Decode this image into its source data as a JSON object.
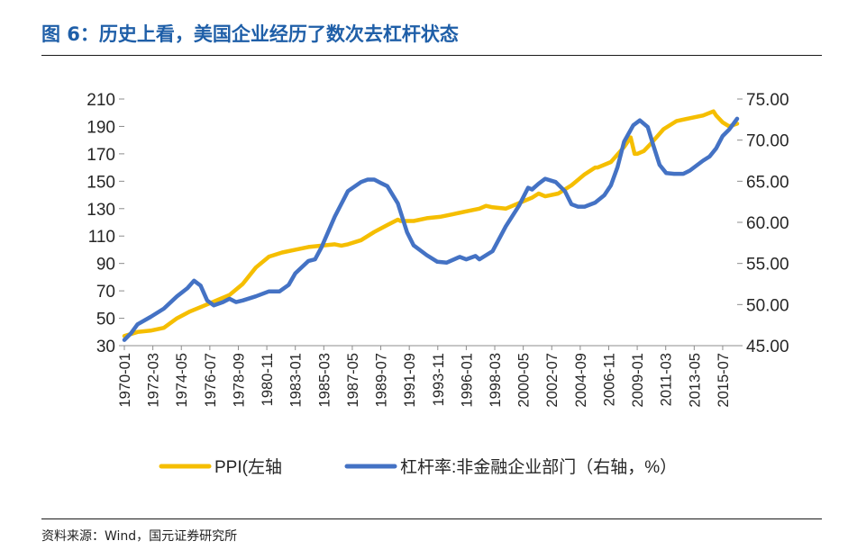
{
  "figure": {
    "title": "图 6：历史上看，美国企业经历了数次去杠杆状态",
    "source": "资料来源：Wind，国元证券研究所"
  },
  "chart_data": {
    "type": "line",
    "title": "图 6：历史上看，美国企业经历了数次去杠杆状态",
    "x_tick_labels": [
      "1970-01",
      "1972-03",
      "1974-05",
      "1976-07",
      "1978-09",
      "1980-11",
      "1983-01",
      "1985-03",
      "1987-05",
      "1989-07",
      "1991-09",
      "1993-11",
      "1996-01",
      "1998-03",
      "2000-05",
      "2002-07",
      "2004-09",
      "2006-11",
      "2009-01",
      "2011-03",
      "2013-05",
      "2015-07"
    ],
    "x_range": [
      1970.0,
      2016.6
    ],
    "y_left": {
      "range": [
        30,
        210
      ],
      "ticks": [
        "30",
        "50",
        "70",
        "90",
        "110",
        "130",
        "150",
        "170",
        "190",
        "210"
      ]
    },
    "y_right": {
      "range": [
        45,
        75
      ],
      "ticks": [
        "45.00",
        "50.00",
        "55.00",
        "60.00",
        "65.00",
        "70.00",
        "75.00"
      ]
    },
    "legend_position": "bottom",
    "grid": false,
    "series": [
      {
        "name": "PPI(左轴",
        "axis": "left",
        "color": "#F5BE00",
        "points": [
          [
            1970.0,
            37
          ],
          [
            1971.0,
            40
          ],
          [
            1972.0,
            41
          ],
          [
            1973.0,
            43
          ],
          [
            1974.0,
            50
          ],
          [
            1975.0,
            55
          ],
          [
            1976.0,
            59
          ],
          [
            1977.0,
            63
          ],
          [
            1978.0,
            67
          ],
          [
            1979.0,
            75
          ],
          [
            1980.0,
            87
          ],
          [
            1981.0,
            95
          ],
          [
            1982.0,
            98
          ],
          [
            1983.0,
            100
          ],
          [
            1984.0,
            102
          ],
          [
            1985.0,
            103
          ],
          [
            1986.0,
            104
          ],
          [
            1986.5,
            103
          ],
          [
            1987.0,
            104
          ],
          [
            1988.0,
            107
          ],
          [
            1989.0,
            113
          ],
          [
            1990.0,
            118
          ],
          [
            1990.8,
            122
          ],
          [
            1991.0,
            121
          ],
          [
            1992.0,
            121
          ],
          [
            1993.0,
            123
          ],
          [
            1994.0,
            124
          ],
          [
            1995.0,
            126
          ],
          [
            1996.0,
            128
          ],
          [
            1997.0,
            130
          ],
          [
            1997.5,
            132
          ],
          [
            1998.0,
            131
          ],
          [
            1999.0,
            130
          ],
          [
            2000.0,
            134
          ],
          [
            2001.0,
            138
          ],
          [
            2001.5,
            141
          ],
          [
            2002.0,
            139
          ],
          [
            2003.0,
            141
          ],
          [
            2004.0,
            147
          ],
          [
            2005.0,
            155
          ],
          [
            2005.8,
            160
          ],
          [
            2006.0,
            160
          ],
          [
            2007.0,
            164
          ],
          [
            2008.0,
            175
          ],
          [
            2008.5,
            182
          ],
          [
            2008.8,
            170
          ],
          [
            2009.0,
            170
          ],
          [
            2009.5,
            172
          ],
          [
            2010.0,
            177
          ],
          [
            2011.0,
            188
          ],
          [
            2012.0,
            194
          ],
          [
            2013.0,
            196
          ],
          [
            2014.0,
            198
          ],
          [
            2014.8,
            201
          ],
          [
            2015.0,
            198
          ],
          [
            2015.5,
            193
          ],
          [
            2016.0,
            190
          ],
          [
            2016.6,
            192
          ]
        ]
      },
      {
        "name": "杠杆率:非金融企业部门（右轴，%）",
        "axis": "right",
        "color": "#4472C4",
        "points": [
          [
            1970.0,
            45.7
          ],
          [
            1970.5,
            46.5
          ],
          [
            1971.0,
            47.6
          ],
          [
            1972.0,
            48.5
          ],
          [
            1973.0,
            49.5
          ],
          [
            1974.0,
            51.0
          ],
          [
            1974.8,
            52.0
          ],
          [
            1975.3,
            52.9
          ],
          [
            1975.8,
            52.3
          ],
          [
            1976.3,
            50.5
          ],
          [
            1976.8,
            49.9
          ],
          [
            1977.5,
            50.3
          ],
          [
            1978.0,
            50.7
          ],
          [
            1978.5,
            50.3
          ],
          [
            1979.0,
            50.5
          ],
          [
            1980.0,
            51.0
          ],
          [
            1981.0,
            51.6
          ],
          [
            1981.8,
            51.6
          ],
          [
            1982.5,
            52.4
          ],
          [
            1983.0,
            53.8
          ],
          [
            1984.0,
            55.3
          ],
          [
            1984.5,
            55.5
          ],
          [
            1985.0,
            57.0
          ],
          [
            1986.0,
            60.7
          ],
          [
            1987.0,
            63.8
          ],
          [
            1988.0,
            64.9
          ],
          [
            1988.5,
            65.2
          ],
          [
            1989.0,
            65.2
          ],
          [
            1989.5,
            64.8
          ],
          [
            1990.0,
            64.4
          ],
          [
            1990.8,
            62.3
          ],
          [
            1991.5,
            58.8
          ],
          [
            1992.0,
            57.2
          ],
          [
            1993.0,
            56.0
          ],
          [
            1993.8,
            55.2
          ],
          [
            1994.5,
            55.1
          ],
          [
            1995.5,
            55.8
          ],
          [
            1996.0,
            55.5
          ],
          [
            1996.7,
            55.9
          ],
          [
            1997.0,
            55.5
          ],
          [
            1998.0,
            56.5
          ],
          [
            1998.5,
            58.0
          ],
          [
            1999.0,
            59.5
          ],
          [
            2000.0,
            62.0
          ],
          [
            2000.7,
            64.2
          ],
          [
            2001.0,
            64.0
          ],
          [
            2001.5,
            64.7
          ],
          [
            2002.0,
            65.3
          ],
          [
            2002.8,
            64.9
          ],
          [
            2003.5,
            63.8
          ],
          [
            2004.0,
            62.2
          ],
          [
            2004.5,
            61.9
          ],
          [
            2005.0,
            61.9
          ],
          [
            2005.8,
            62.4
          ],
          [
            2006.5,
            63.3
          ],
          [
            2007.0,
            64.5
          ],
          [
            2007.5,
            66.7
          ],
          [
            2008.0,
            69.8
          ],
          [
            2008.7,
            71.8
          ],
          [
            2009.2,
            72.4
          ],
          [
            2009.8,
            71.6
          ],
          [
            2010.2,
            69.5
          ],
          [
            2010.7,
            67.0
          ],
          [
            2011.2,
            66.0
          ],
          [
            2011.8,
            65.9
          ],
          [
            2012.5,
            65.9
          ],
          [
            2013.0,
            66.3
          ],
          [
            2013.5,
            66.9
          ],
          [
            2014.0,
            67.5
          ],
          [
            2014.5,
            68.0
          ],
          [
            2015.0,
            69.0
          ],
          [
            2015.5,
            70.5
          ],
          [
            2016.0,
            71.3
          ],
          [
            2016.6,
            72.6
          ]
        ]
      }
    ]
  },
  "legend": {
    "ppi_label": "PPI(左轴",
    "leverage_label": "杠杆率:非金融企业部门（右轴，%）"
  },
  "colors": {
    "title": "#1f5fa8",
    "ppi": "#F5BE00",
    "leverage": "#4472C4"
  }
}
